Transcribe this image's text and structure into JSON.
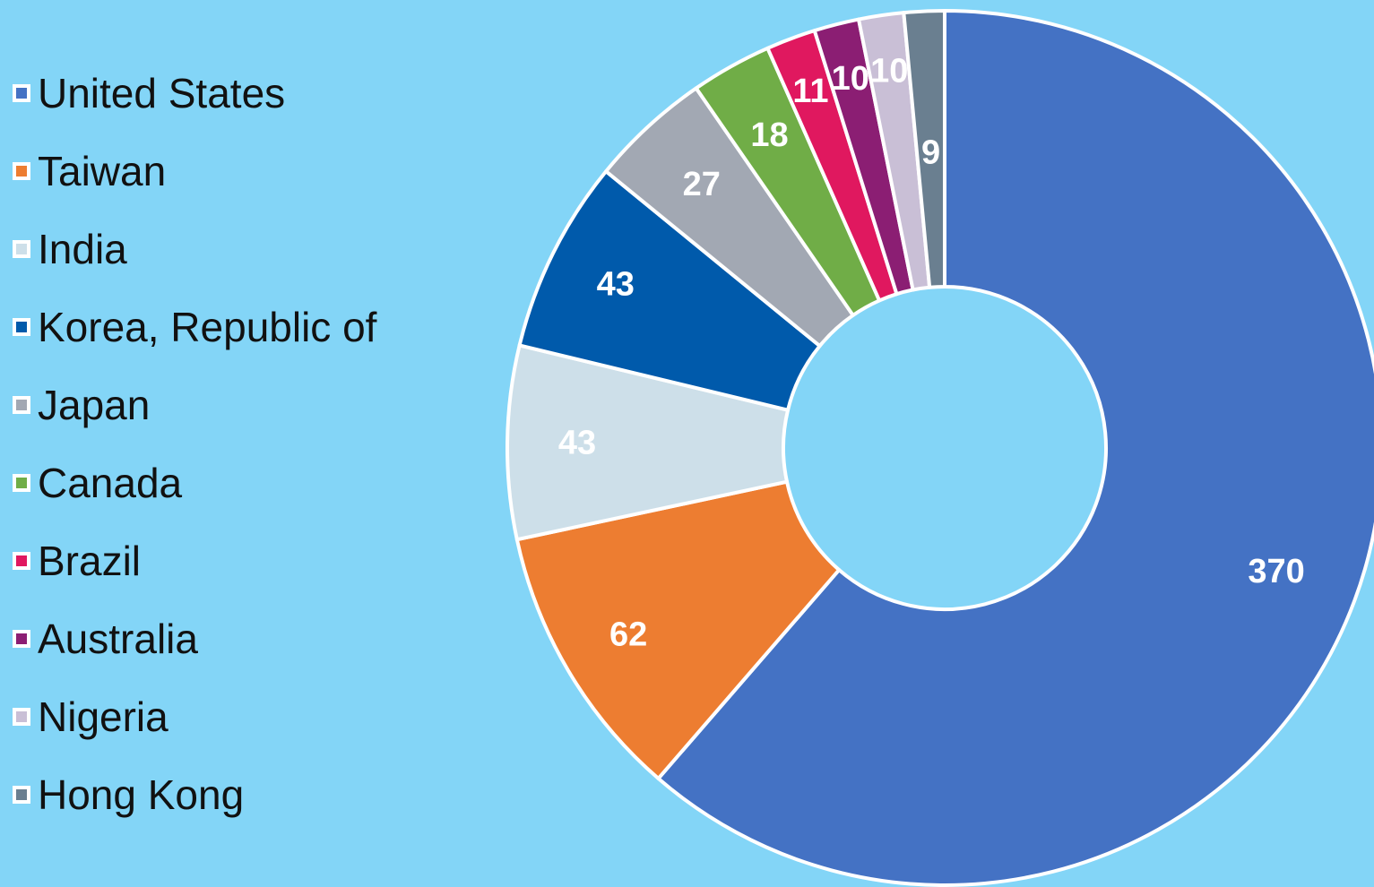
{
  "chart_data": {
    "type": "pie",
    "subtype": "donut",
    "title": "",
    "legend_position": "left",
    "categories": [
      "United States",
      "Taiwan",
      "India",
      "Korea, Republic of",
      "Japan",
      "Canada",
      "Brazil",
      "Australia",
      "Nigeria",
      "Hong Kong"
    ],
    "values": [
      370,
      62,
      43,
      43,
      27,
      18,
      11,
      10,
      10,
      9
    ],
    "labels": [
      "370",
      "62",
      "43",
      "43",
      "27",
      "18",
      "11",
      "10",
      "10",
      "9"
    ],
    "colors": [
      "#4472c4",
      "#ed7d31",
      "#cddfe9",
      "#005aab",
      "#a2a8b3",
      "#70ad47",
      "#e0185f",
      "#8b1e73",
      "#c9bfd6",
      "#6a7f90"
    ],
    "label_colors": [
      "#ffffff",
      "#ffffff",
      "#ffffff",
      "#ffffff",
      "#ffffff",
      "#ffffff",
      "#ffffff",
      "#ffffff",
      "#ffffff",
      "#ffffff"
    ],
    "background": "#83d5f7",
    "slice_border": "#ffffff"
  }
}
